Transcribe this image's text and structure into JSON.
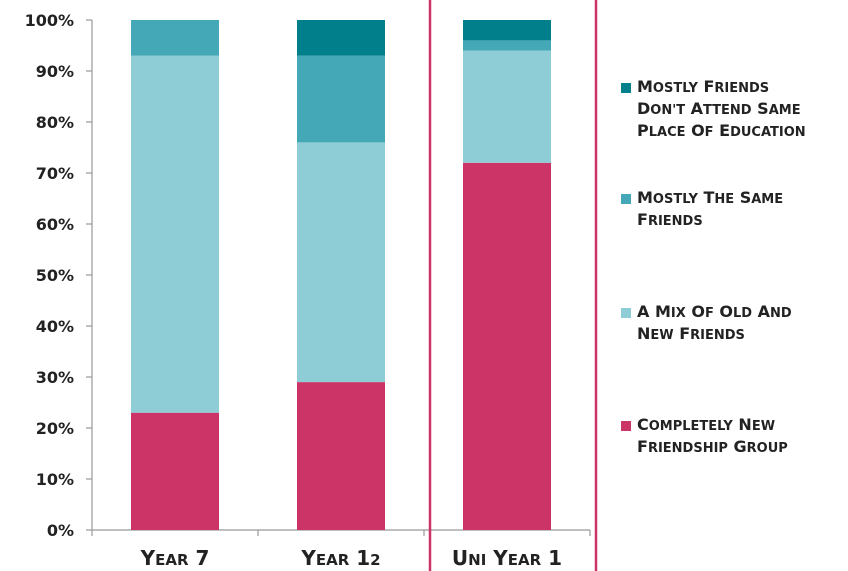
{
  "chart_data": {
    "type": "bar",
    "stacked": true,
    "categories": [
      "Year 7",
      "Year 12",
      "Uni Year 1"
    ],
    "series": [
      {
        "name": "Completely new friendship group",
        "values": [
          23,
          29,
          72
        ],
        "color": "#cc3366"
      },
      {
        "name": "A mix of old and new friends",
        "values": [
          70,
          47,
          22
        ],
        "color": "#8fcdd6"
      },
      {
        "name": "Mostly the same friends",
        "values": [
          7,
          17,
          2
        ],
        "color": "#45a8b6"
      },
      {
        "name": "Mostly friends don't attend same place of education",
        "values": [
          0,
          7,
          4
        ],
        "color": "#017f8a"
      }
    ],
    "ylim": [
      0,
      100
    ],
    "yticks": [
      "0%",
      "10%",
      "20%",
      "30%",
      "40%",
      "50%",
      "60%",
      "70%",
      "80%",
      "90%",
      "100%"
    ],
    "legend": {
      "position": "right",
      "entries": [
        {
          "series": 3,
          "lines": [
            "Mostly friends",
            "don't attend same",
            "place of education"
          ]
        },
        {
          "series": 2,
          "lines": [
            "Mostly the same",
            "friends"
          ]
        },
        {
          "series": 1,
          "lines": [
            "A mix of old and",
            "new friends"
          ]
        },
        {
          "series": 0,
          "lines": [
            "Completely new",
            "friendship group"
          ]
        }
      ]
    },
    "highlight_category": "Uni Year 1",
    "highlight_color": "#cc3366"
  }
}
